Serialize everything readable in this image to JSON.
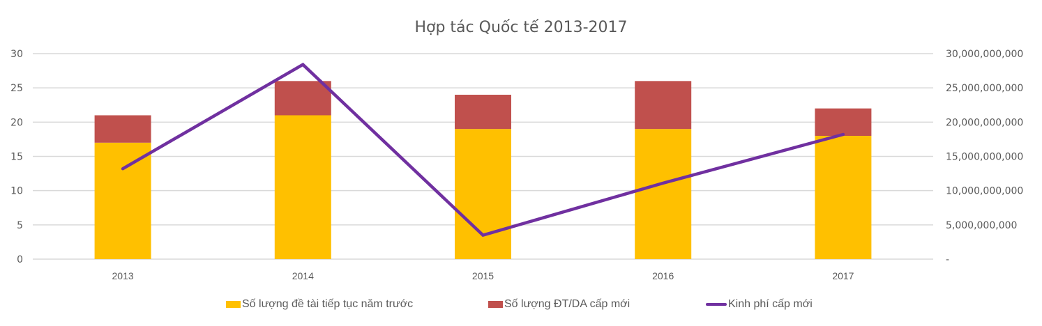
{
  "chart_data": {
    "type": "bar",
    "subtype": "stacked bar + line (secondary axis)",
    "title": "Hợp tác Quốc tế 2013-2017",
    "categories": [
      "2013",
      "2014",
      "2015",
      "2016",
      "2017"
    ],
    "series": [
      {
        "name": "Số lượng đề tài tiếp tục năm trước",
        "type": "bar",
        "axis": "left",
        "color": "#FFC000",
        "values": [
          17,
          21,
          19,
          19,
          18
        ]
      },
      {
        "name": "Số lượng ĐT/DA cấp mới",
        "type": "bar",
        "axis": "left",
        "color": "#C0504D",
        "values": [
          4,
          5,
          5,
          7,
          4
        ]
      },
      {
        "name": "Kinh phí cấp mới",
        "type": "line",
        "axis": "right",
        "color": "#7030A0",
        "values": [
          13200000000,
          28400000000,
          3500000000,
          11100000000,
          18200000000
        ]
      }
    ],
    "left_axis": {
      "ylim": [
        0,
        30
      ],
      "ticks": [
        0,
        5,
        10,
        15,
        20,
        25,
        30
      ],
      "tick_labels": [
        "0",
        "5",
        "10",
        "15",
        "20",
        "25",
        "30"
      ]
    },
    "right_axis": {
      "ylim": [
        0,
        30000000000
      ],
      "ticks": [
        0,
        5000000000,
        10000000000,
        15000000000,
        20000000000,
        25000000000,
        30000000000
      ],
      "tick_labels": [
        "-",
        "5,000,000,000",
        "10,000,000,000",
        "15,000,000,000",
        "20,000,000,000",
        "25,000,000,000",
        "30,000,000,000"
      ]
    },
    "xlabel": "",
    "ylabel": "",
    "grid": true,
    "legend_position": "bottom",
    "colors": {
      "gridline": "#D9D9D9",
      "text": "#595959"
    }
  }
}
